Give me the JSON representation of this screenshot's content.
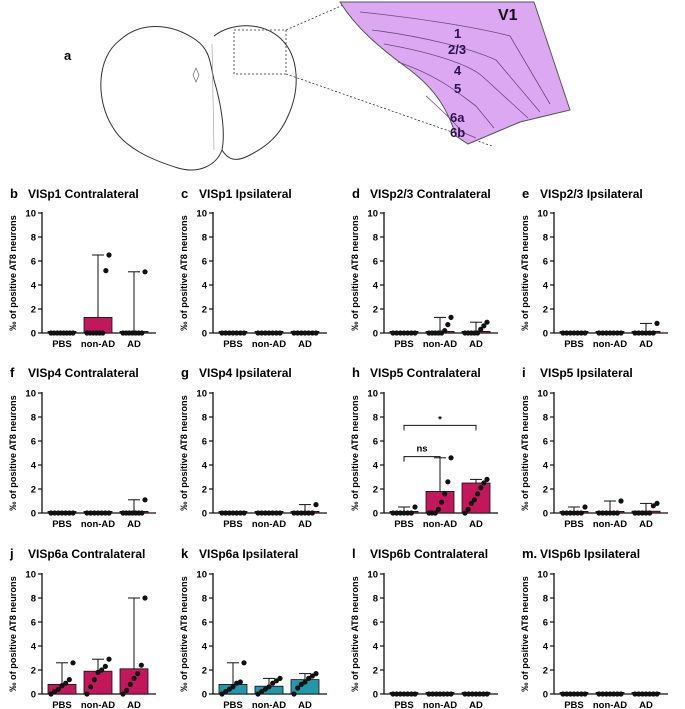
{
  "schematic": {
    "panel_label": "a",
    "region_label": "V1",
    "layers": [
      "1",
      "2/3",
      "4",
      "5",
      "6a",
      "6b"
    ],
    "colors": {
      "cortex_fill": "#dca8f2",
      "cortex_stroke": "#555555",
      "brain_stroke": "#333333"
    }
  },
  "colors": {
    "magenta": "#c2185b",
    "teal": "#2297a8",
    "dark": "#111111"
  },
  "chart_data": [
    {
      "id": "b",
      "type": "bar",
      "title": "VISp1 Contralateral",
      "categories": [
        "PBS",
        "non-AD",
        "AD"
      ],
      "ylabel": "‰ of positive AT8 neurons",
      "ylim": [
        0,
        10
      ],
      "yticks": [
        0,
        2,
        4,
        6,
        8,
        10
      ],
      "bar_color": "magenta",
      "values": [
        0,
        1.3,
        0
      ],
      "error_max": [
        0,
        6.5,
        5.1
      ],
      "points": [
        [
          0,
          0,
          0,
          0,
          0,
          0,
          0,
          0
        ],
        [
          0,
          0,
          0,
          0,
          0,
          0,
          5.2,
          6.5
        ],
        [
          0,
          0,
          0,
          0,
          0,
          0,
          0,
          5.1
        ]
      ]
    },
    {
      "id": "c",
      "type": "bar",
      "title": "VISp1 Ipsilateral",
      "categories": [
        "PBS",
        "non-AD",
        "AD"
      ],
      "ylabel": "‰ of positive AT8 neurons",
      "ylim": [
        0,
        10
      ],
      "yticks": [
        0,
        2,
        4,
        6,
        8,
        10
      ],
      "bar_color": "magenta",
      "values": [
        0,
        0,
        0
      ],
      "error_max": [
        0,
        0,
        0
      ],
      "points": [
        [
          0,
          0,
          0,
          0,
          0,
          0,
          0
        ],
        [
          0,
          0,
          0,
          0,
          0,
          0,
          0
        ],
        [
          0,
          0,
          0,
          0,
          0,
          0,
          0
        ]
      ]
    },
    {
      "id": "d",
      "type": "bar",
      "title": "VISp2/3 Contralateral",
      "categories": [
        "PBS",
        "non-AD",
        "AD"
      ],
      "ylabel": "‰ of positive AT8 neurons",
      "ylim": [
        0,
        10
      ],
      "yticks": [
        0,
        2,
        4,
        6,
        8,
        10
      ],
      "bar_color": "magenta",
      "values": [
        0,
        0.1,
        0.1
      ],
      "error_max": [
        0,
        1.3,
        0.9
      ],
      "points": [
        [
          0,
          0,
          0,
          0,
          0,
          0,
          0
        ],
        [
          0,
          0,
          0,
          0,
          0,
          0.2,
          0.7,
          1.3
        ],
        [
          0,
          0,
          0,
          0,
          0,
          0.3,
          0.6,
          0.9
        ]
      ]
    },
    {
      "id": "e",
      "type": "bar",
      "title": "VISp2/3 Ipsilateral",
      "categories": [
        "PBS",
        "non-AD",
        "AD"
      ],
      "ylabel": "‰ of positive AT8 neurons",
      "ylim": [
        0,
        10
      ],
      "yticks": [
        0,
        2,
        4,
        6,
        8,
        10
      ],
      "bar_color": "magenta",
      "values": [
        0,
        0,
        0.05
      ],
      "error_max": [
        0,
        0,
        0.8
      ],
      "points": [
        [
          0,
          0,
          0,
          0,
          0,
          0,
          0
        ],
        [
          0,
          0,
          0,
          0,
          0,
          0,
          0
        ],
        [
          0,
          0,
          0,
          0,
          0,
          0,
          0.8
        ]
      ]
    },
    {
      "id": "f",
      "type": "bar",
      "title": "VISp4 Contralateral",
      "categories": [
        "PBS",
        "non-AD",
        "AD"
      ],
      "ylabel": "‰ of positive AT8 neurons",
      "ylim": [
        0,
        10
      ],
      "yticks": [
        0,
        2,
        4,
        6,
        8,
        10
      ],
      "bar_color": "magenta",
      "values": [
        0,
        0,
        0.05
      ],
      "error_max": [
        0,
        0,
        1.1
      ],
      "points": [
        [
          0,
          0,
          0,
          0,
          0,
          0,
          0
        ],
        [
          0,
          0,
          0,
          0,
          0,
          0,
          0
        ],
        [
          0,
          0,
          0,
          0,
          0,
          0,
          0,
          1.1
        ]
      ]
    },
    {
      "id": "g",
      "type": "bar",
      "title": "VISp4 Ipsilateral",
      "categories": [
        "PBS",
        "non-AD",
        "AD"
      ],
      "ylabel": "‰ of positive AT8 neurons",
      "ylim": [
        0,
        10
      ],
      "yticks": [
        0,
        2,
        4,
        6,
        8,
        10
      ],
      "bar_color": "magenta",
      "values": [
        0,
        0,
        0.05
      ],
      "error_max": [
        0,
        0,
        0.7
      ],
      "points": [
        [
          0,
          0,
          0,
          0,
          0,
          0,
          0
        ],
        [
          0,
          0,
          0,
          0,
          0,
          0,
          0
        ],
        [
          0,
          0,
          0,
          0,
          0,
          0,
          0.7
        ]
      ]
    },
    {
      "id": "h",
      "type": "bar",
      "title": "VISp5 Contralateral",
      "categories": [
        "PBS",
        "non-AD",
        "AD"
      ],
      "ylabel": "‰ of positive AT8 neurons",
      "ylim": [
        0,
        10
      ],
      "yticks": [
        0,
        2,
        4,
        6,
        8,
        10
      ],
      "bar_color": "magenta",
      "values": [
        0.05,
        1.8,
        2.5
      ],
      "error_max": [
        0.5,
        4.6,
        2.8
      ],
      "points": [
        [
          0,
          0,
          0,
          0,
          0,
          0,
          0.5
        ],
        [
          0,
          0,
          0,
          0.3,
          0.9,
          1.6,
          2.6,
          4.6
        ],
        [
          0,
          0.3,
          0.8,
          1.1,
          1.6,
          2.1,
          2.5,
          2.8
        ]
      ],
      "significance": [
        {
          "from": 0,
          "to": 1,
          "label": "ns"
        },
        {
          "from": 0,
          "to": 2,
          "label": "*"
        }
      ]
    },
    {
      "id": "i",
      "type": "bar",
      "title": "VISp5 Ipsilateral",
      "categories": [
        "PBS",
        "non-AD",
        "AD"
      ],
      "ylabel": "‰ of positive AT8 neurons",
      "ylim": [
        0,
        10
      ],
      "yticks": [
        0,
        2,
        4,
        6,
        8,
        10
      ],
      "bar_color": "magenta",
      "values": [
        0.05,
        0.1,
        0.15
      ],
      "error_max": [
        0.5,
        1.0,
        0.8
      ],
      "points": [
        [
          0,
          0,
          0,
          0,
          0,
          0,
          0.5
        ],
        [
          0,
          0,
          0,
          0,
          0,
          0,
          1.0
        ],
        [
          0,
          0,
          0,
          0,
          0,
          0.6,
          0.8
        ]
      ]
    },
    {
      "id": "j",
      "type": "bar",
      "title": "VISp6a Contralateral",
      "categories": [
        "PBS",
        "non-AD",
        "AD"
      ],
      "ylabel": "‰ of positive AT8 neurons",
      "ylim": [
        0,
        10
      ],
      "yticks": [
        0,
        2,
        4,
        6,
        8,
        10
      ],
      "bar_color": "magenta",
      "values": [
        0.8,
        1.9,
        2.1
      ],
      "error_max": [
        2.6,
        2.9,
        8.0
      ],
      "points": [
        [
          0,
          0.2,
          0.4,
          0.7,
          0.9,
          1.2,
          2.6
        ],
        [
          0,
          0.6,
          1.2,
          1.8,
          2.0,
          2.3,
          2.9
        ],
        [
          0,
          0.3,
          0.8,
          1.3,
          1.7,
          2.4,
          8.0
        ]
      ]
    },
    {
      "id": "k",
      "type": "bar",
      "title": "VISp6a Ipsilateral",
      "categories": [
        "PBS",
        "non-AD",
        "AD"
      ],
      "ylabel": "‰ of positive AT8 neurons",
      "ylim": [
        0,
        10
      ],
      "yticks": [
        0,
        2,
        4,
        6,
        8,
        10
      ],
      "bar_color": "teal",
      "values": [
        0.8,
        0.65,
        1.2
      ],
      "error_max": [
        2.6,
        1.3,
        1.7
      ],
      "points": [
        [
          0,
          0.2,
          0.4,
          0.6,
          0.9,
          1.0,
          2.6
        ],
        [
          0,
          0.2,
          0.4,
          0.6,
          0.9,
          1.1,
          1.3
        ],
        [
          0,
          0.5,
          0.8,
          1.0,
          1.3,
          1.5,
          1.7
        ]
      ]
    },
    {
      "id": "l",
      "type": "bar",
      "title": "VISp6b Contralateral",
      "categories": [
        "PBS",
        "non-AD",
        "AD"
      ],
      "ylabel": "‰ of positive AT8 neurons",
      "ylim": [
        0,
        10
      ],
      "yticks": [
        0,
        2,
        4,
        6,
        8,
        10
      ],
      "bar_color": "teal",
      "values": [
        0,
        0,
        0
      ],
      "error_max": [
        0,
        0,
        0
      ],
      "points": [
        [
          0,
          0,
          0,
          0,
          0,
          0,
          0
        ],
        [
          0,
          0,
          0,
          0,
          0,
          0,
          0
        ],
        [
          0,
          0,
          0,
          0,
          0,
          0,
          0
        ]
      ]
    },
    {
      "id": "m.",
      "type": "bar",
      "title": "VISp6b Ipsilateral",
      "categories": [
        "PBS",
        "non-AD",
        "AD"
      ],
      "ylabel": "‰ of positive AT8 neurons",
      "ylim": [
        0,
        10
      ],
      "yticks": [
        0,
        2,
        4,
        6,
        8,
        10
      ],
      "bar_color": "teal",
      "values": [
        0,
        0,
        0
      ],
      "error_max": [
        0,
        0,
        0
      ],
      "points": [
        [
          0,
          0,
          0,
          0,
          0,
          0,
          0
        ],
        [
          0,
          0,
          0,
          0,
          0,
          0,
          0
        ],
        [
          0,
          0,
          0,
          0,
          0,
          0,
          0
        ]
      ]
    }
  ]
}
